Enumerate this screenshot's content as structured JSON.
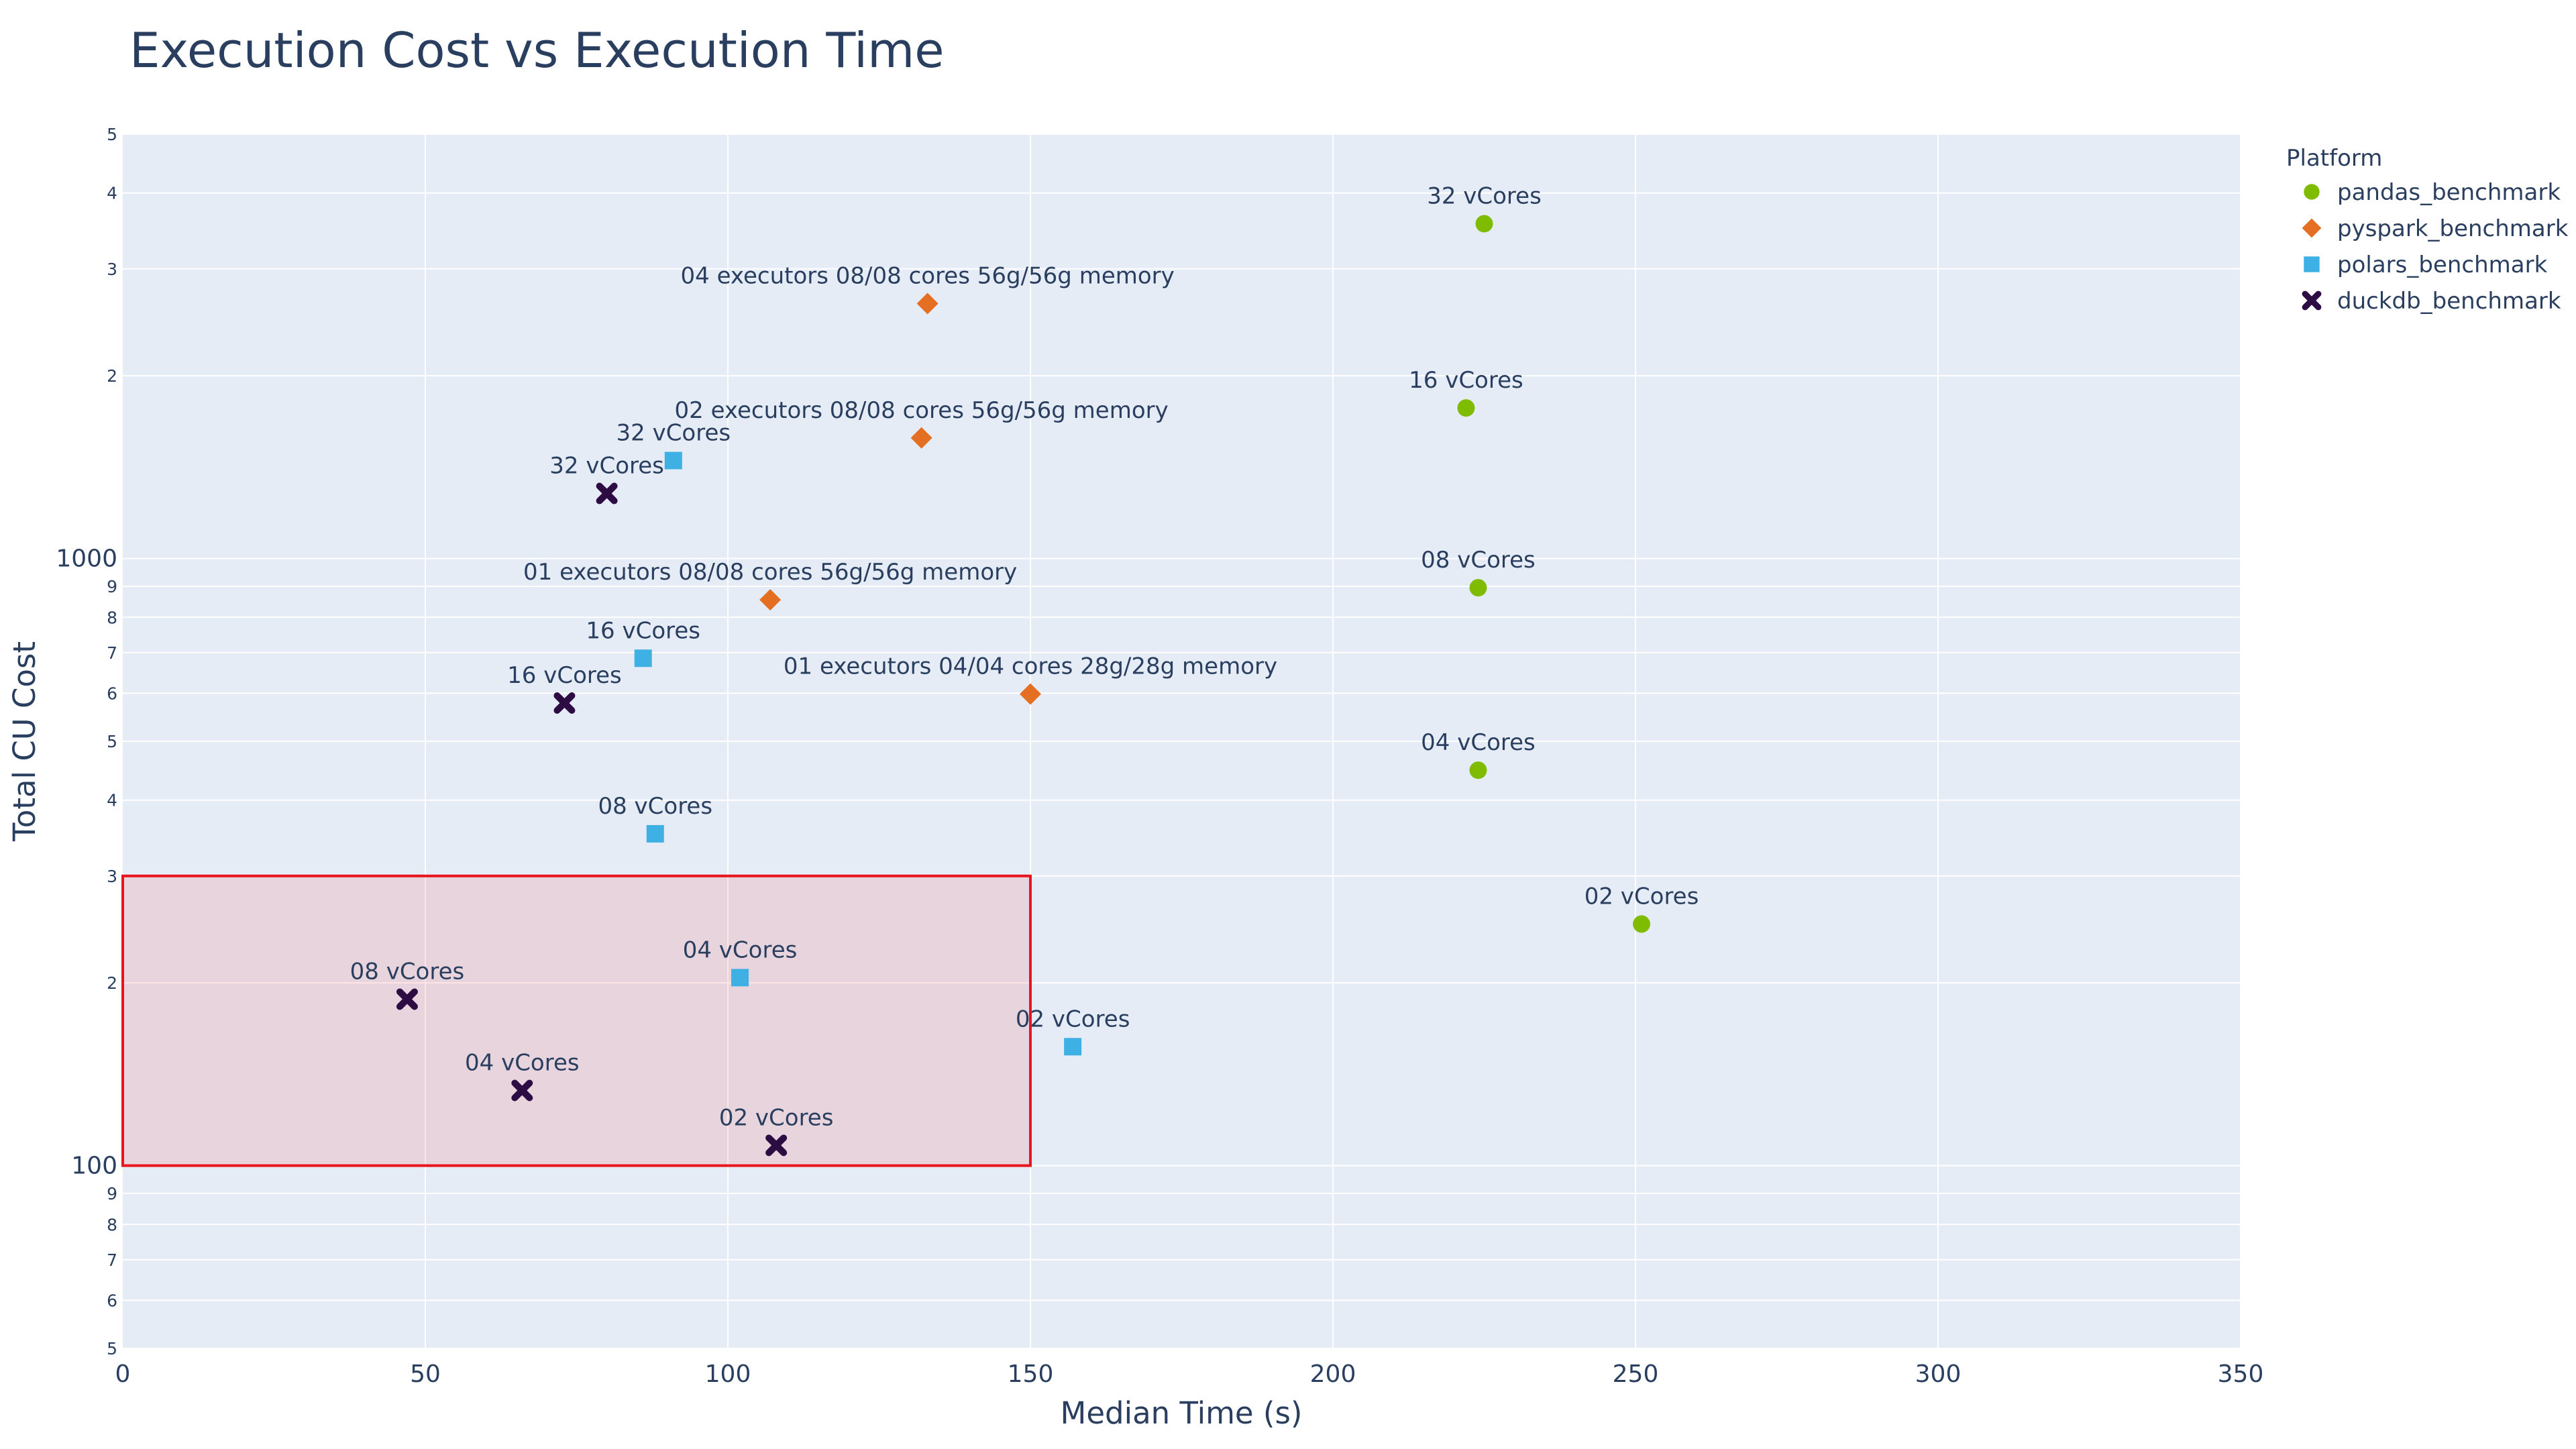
{
  "chart_data": {
    "type": "scatter",
    "title": "Execution Cost vs Execution Time",
    "xlabel": "Median Time (s)",
    "ylabel": "Total CU Cost",
    "xlim": [
      0,
      350
    ],
    "ylim": [
      50,
      5000
    ],
    "yscale": "log",
    "x_ticks": [
      0,
      50,
      100,
      150,
      200,
      250,
      300,
      350
    ],
    "y_major_ticks": [
      {
        "value": 100,
        "label": "100"
      },
      {
        "value": 1000,
        "label": "1000"
      }
    ],
    "y_minor_ticks": [
      {
        "value": 50,
        "label": "5"
      },
      {
        "value": 60,
        "label": "6"
      },
      {
        "value": 70,
        "label": "7"
      },
      {
        "value": 80,
        "label": "8"
      },
      {
        "value": 90,
        "label": "9"
      },
      {
        "value": 200,
        "label": "2"
      },
      {
        "value": 300,
        "label": "3"
      },
      {
        "value": 400,
        "label": "4"
      },
      {
        "value": 500,
        "label": "5"
      },
      {
        "value": 600,
        "label": "6"
      },
      {
        "value": 700,
        "label": "7"
      },
      {
        "value": 800,
        "label": "8"
      },
      {
        "value": 900,
        "label": "9"
      },
      {
        "value": 2000,
        "label": "2"
      },
      {
        "value": 3000,
        "label": "3"
      },
      {
        "value": 4000,
        "label": "4"
      },
      {
        "value": 5000,
        "label": "5"
      }
    ],
    "legend_title": "Platform",
    "legend_position": "top-right",
    "grid": true,
    "highlight_region": {
      "x": [
        0,
        150
      ],
      "y": [
        100,
        300
      ]
    },
    "series": [
      {
        "name": "pandas_benchmark",
        "marker": "circle",
        "color": "#7fbc00",
        "points": [
          {
            "x": 225,
            "y": 3560,
            "label": "32 vCores"
          },
          {
            "x": 222,
            "y": 1770,
            "label": "16 vCores"
          },
          {
            "x": 224,
            "y": 895,
            "label": "08 vCores"
          },
          {
            "x": 224,
            "y": 448,
            "label": "04 vCores"
          },
          {
            "x": 251,
            "y": 250,
            "label": "02 vCores"
          }
        ]
      },
      {
        "name": "pyspark_benchmark",
        "marker": "diamond",
        "color": "#e46f22",
        "points": [
          {
            "x": 133,
            "y": 2630,
            "label": "04 executors 08/08 cores 56g/56g memory"
          },
          {
            "x": 132,
            "y": 1580,
            "label": "02 executors 08/08 cores 56g/56g memory"
          },
          {
            "x": 107,
            "y": 855,
            "label": "01 executors 08/08 cores 56g/56g memory"
          },
          {
            "x": 150,
            "y": 598,
            "label": "01 executors 04/04 cores 28g/28g memory"
          }
        ]
      },
      {
        "name": "polars_benchmark",
        "marker": "square",
        "color": "#3fb0e3",
        "points": [
          {
            "x": 91,
            "y": 1450,
            "label": "32 vCores"
          },
          {
            "x": 86,
            "y": 685,
            "label": "16 vCores"
          },
          {
            "x": 88,
            "y": 352,
            "label": "08 vCores"
          },
          {
            "x": 102,
            "y": 204,
            "label": "04 vCores"
          },
          {
            "x": 157,
            "y": 157,
            "label": "02 vCores"
          }
        ]
      },
      {
        "name": "duckdb_benchmark",
        "marker": "x",
        "color": "#2d0b43",
        "points": [
          {
            "x": 80,
            "y": 1280,
            "label": "32 vCores"
          },
          {
            "x": 73,
            "y": 578,
            "label": "16 vCores"
          },
          {
            "x": 47,
            "y": 188,
            "label": "08 vCores"
          },
          {
            "x": 66,
            "y": 133,
            "label": "04 vCores"
          },
          {
            "x": 108,
            "y": 108,
            "label": "02 vCores"
          }
        ]
      }
    ]
  }
}
